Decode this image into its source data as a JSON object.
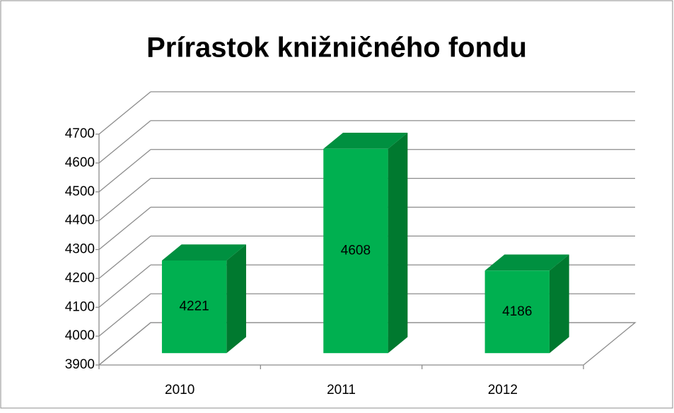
{
  "chart_data": {
    "type": "bar3d",
    "title": "Prírastok knižničného fondu",
    "categories": [
      "2010",
      "2011",
      "2012"
    ],
    "values": [
      4221,
      4608,
      4186
    ],
    "color": "#00b050",
    "ylim": [
      3900,
      4700
    ],
    "yticks": [
      3900,
      4000,
      4100,
      4200,
      4300,
      4400,
      4500,
      4600,
      4700
    ],
    "grid": true
  }
}
